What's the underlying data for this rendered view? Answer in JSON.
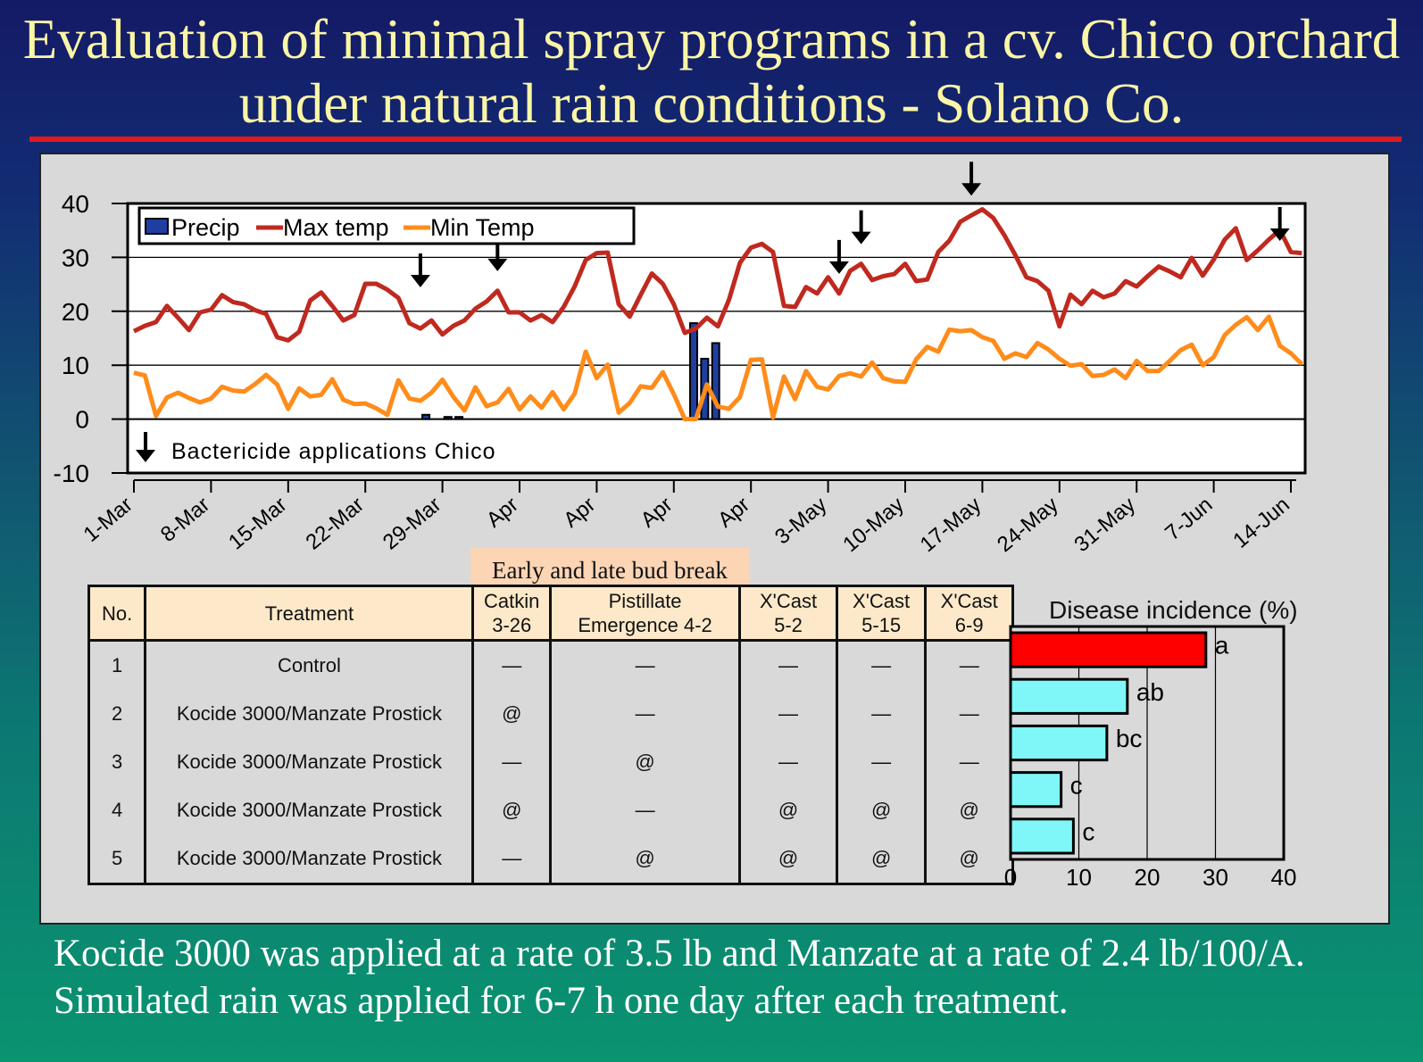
{
  "title_line1": "Evaluation of minimal spray programs in a cv. Chico orchard",
  "title_line2": "under natural rain conditions - Solano Co.",
  "footer_line1": "Kocide 3000 was applied at a rate of 3.5 lb and Manzate at a rate of 2.4 lb/100/A.",
  "footer_line2": "Simulated rain was applied for 6-7 h one day after each treatment.",
  "bud_break_label": "Early and late bud break",
  "bactericide_label": "Bactericide applications Chico",
  "disease_title": "Disease incidence (%)",
  "colors": {
    "max_temp": "#c0291f",
    "min_temp": "#ff8c1a",
    "precip": "#1f3fa0",
    "bar_control": "#ff0000",
    "bar_treated": "#7ff6f8"
  },
  "table": {
    "headers": [
      {
        "line1": "No.",
        "line2": ""
      },
      {
        "line1": "Treatment",
        "line2": ""
      },
      {
        "line1": "Catkin",
        "line2": "3-26"
      },
      {
        "line1": "Pistillate",
        "line2": "Emergence 4-2"
      },
      {
        "line1": "X'Cast",
        "line2": "5-2"
      },
      {
        "line1": "X'Cast",
        "line2": "5-15"
      },
      {
        "line1": "X'Cast",
        "line2": "6-9"
      }
    ],
    "rows": [
      [
        "1",
        "Control",
        "—",
        "—",
        "—",
        "—",
        "—"
      ],
      [
        "2",
        "Kocide 3000/Manzate Prostick",
        "@",
        "—",
        "—",
        "—",
        "—"
      ],
      [
        "3",
        "Kocide 3000/Manzate Prostick",
        "—",
        "@",
        "—",
        "—",
        "—"
      ],
      [
        "4",
        "Kocide 3000/Manzate Prostick",
        "@",
        "—",
        "@",
        "@",
        "@"
      ],
      [
        "5",
        "Kocide 3000/Manzate Prostick",
        "—",
        "@",
        "@",
        "@",
        "@"
      ]
    ]
  },
  "chart_data": [
    {
      "type": "line",
      "ylim": [
        -10,
        40
      ],
      "yticks": [
        40,
        30,
        20,
        10,
        0,
        -10
      ],
      "x_tick_labels": [
        "1-Mar",
        "8-Mar",
        "15-Mar",
        "22-Mar",
        "29-Mar",
        "Apr",
        "Apr",
        "Apr",
        "Apr",
        "3-May",
        "10-May",
        "17-May",
        "24-May",
        "31-May",
        "7-Jun",
        "14-Jun"
      ],
      "x_day_range": [
        0,
        105
      ],
      "grid": true,
      "legend": [
        "Precip",
        "Max temp",
        "Min Temp"
      ],
      "legend_position": "top-left",
      "series": [
        {
          "name": "Max temp",
          "type": "line",
          "y": [
            16.3,
            17.3,
            18.0,
            21.0,
            18.8,
            16.5,
            19.8,
            20.3,
            23.0,
            21.7,
            21.3,
            20.2,
            19.5,
            15.2,
            14.6,
            16.2,
            22.0,
            23.5,
            21.0,
            18.3,
            19.3,
            25.1,
            25.1,
            24.0,
            22.5,
            17.8,
            16.8,
            18.3,
            15.7,
            17.3,
            18.3,
            20.5,
            21.8,
            23.8,
            19.8,
            19.8,
            18.3,
            19.3,
            18.0,
            20.8,
            24.6,
            29.5,
            30.8,
            30.9,
            21.3,
            19.0,
            23.1,
            27.0,
            25.1,
            21.3,
            16.0,
            16.8,
            18.8,
            17.2,
            22.1,
            29.0,
            31.8,
            32.5,
            31.0,
            21.0,
            20.8,
            24.5,
            23.3,
            26.3,
            23.3,
            27.5,
            28.8,
            25.8,
            26.5,
            26.9,
            28.8,
            25.6,
            25.9,
            31.0,
            33.1,
            36.6,
            37.8,
            38.9,
            37.3,
            34.1,
            30.4,
            26.3,
            25.6,
            23.8,
            17.2,
            23.1,
            21.3,
            23.8,
            22.6,
            23.3,
            25.6,
            24.6,
            26.5,
            28.3,
            27.4,
            26.3,
            29.9,
            26.6,
            29.6,
            33.3,
            35.4,
            29.5,
            31.3,
            33.3,
            35.1,
            31.0,
            30.8
          ]
        },
        {
          "name": "Min Temp",
          "type": "line",
          "y": [
            8.6,
            8.1,
            0.6,
            4.0,
            4.9,
            3.9,
            3.1,
            3.8,
            6.0,
            5.3,
            5.1,
            6.5,
            8.2,
            6.4,
            1.9,
            5.7,
            4.2,
            4.5,
            7.4,
            3.6,
            2.8,
            2.9,
            2.0,
            0.8,
            7.2,
            3.8,
            3.4,
            4.9,
            7.3,
            4.1,
            1.6,
            5.9,
            2.4,
            3.1,
            5.6,
            1.8,
            4.2,
            2.1,
            5.0,
            1.8,
            4.7,
            12.5,
            7.6,
            10.1,
            1.2,
            3.0,
            6.1,
            5.8,
            8.7,
            4.6,
            0.0,
            0.0,
            6.4,
            2.3,
            1.9,
            4.1,
            11.0,
            11.1,
            0.3,
            7.9,
            3.7,
            8.9,
            6.0,
            5.5,
            8.0,
            8.5,
            7.9,
            10.5,
            7.6,
            7.0,
            6.9,
            11.1,
            13.4,
            12.5,
            16.6,
            16.3,
            16.5,
            15.2,
            14.5,
            11.2,
            12.2,
            11.5,
            14.1,
            12.9,
            11.2,
            9.9,
            10.2,
            8.0,
            8.2,
            9.2,
            7.6,
            10.8,
            8.9,
            8.9,
            10.8,
            12.8,
            13.8,
            10.0,
            11.5,
            15.6,
            17.5,
            18.9,
            16.5,
            19.0,
            13.6,
            12.2,
            10.2
          ]
        },
        {
          "name": "Precip",
          "type": "bar",
          "points": [
            {
              "day": 26.5,
              "value": 0.8
            },
            {
              "day": 28.5,
              "value": 0.4
            },
            {
              "day": 29.5,
              "value": 0.4
            },
            {
              "day": 50.8,
              "value": 17.8
            },
            {
              "day": 51.8,
              "value": 11.2
            },
            {
              "day": 52.8,
              "value": 14.1
            }
          ]
        }
      ],
      "bactericide_arrows_day": [
        26,
        33,
        64,
        66,
        76,
        104
      ]
    },
    {
      "type": "bar",
      "title": "Disease incidence (%)",
      "orientation": "horizontal",
      "xlim": [
        0,
        40
      ],
      "xticks": [
        0,
        10,
        20,
        30,
        40
      ],
      "categories": [
        "1",
        "2",
        "3",
        "4",
        "5"
      ],
      "values": [
        28.6,
        17.1,
        14.1,
        7.4,
        9.2
      ],
      "letters": [
        "a",
        "ab",
        "bc",
        "c",
        "c"
      ]
    }
  ]
}
